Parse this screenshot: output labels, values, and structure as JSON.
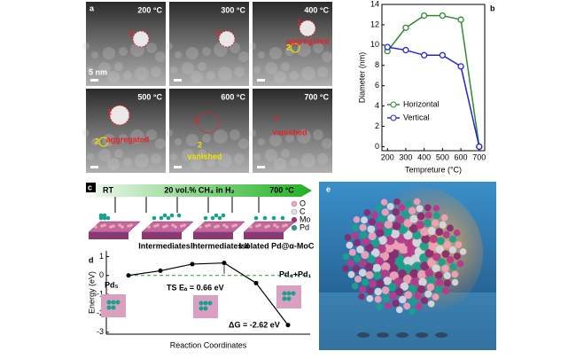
{
  "panel_a": {
    "label": "a",
    "scale_bar": "5 nm",
    "images": [
      {
        "temperature": "200 °C",
        "markers": [
          "1"
        ]
      },
      {
        "temperature": "300 °C",
        "markers": [
          "1"
        ]
      },
      {
        "temperature": "400 °C",
        "markers": [
          "1",
          "2"
        ],
        "note": "aggregated",
        "note_color": "#e8202a"
      },
      {
        "temperature": "500 °C",
        "markers": [
          "1",
          "2"
        ],
        "note": "aggregated",
        "note_color": "#e8202a"
      },
      {
        "temperature": "600 °C",
        "markers": [
          "1",
          "2"
        ],
        "note": "vanished",
        "note_color": "#f2e600"
      },
      {
        "temperature": "700 °C",
        "markers": [
          "1"
        ],
        "note": "vanished",
        "note_color": "#e8202a"
      }
    ]
  },
  "chart_data": [
    {
      "type": "line",
      "label": "b",
      "x_label": "Tempreture (°C)",
      "y_label": "Diameter (nm)",
      "x": [
        200,
        300,
        400,
        500,
        600,
        700
      ],
      "series": [
        {
          "name": "Horizontal",
          "color": "#2e8b2e",
          "values": [
            9.4,
            11.7,
            12.9,
            12.9,
            12.5,
            0
          ]
        },
        {
          "name": "Vertical",
          "color": "#2323d8",
          "values": [
            9.8,
            9.5,
            9.0,
            9.0,
            7.9,
            0
          ]
        }
      ],
      "xlim": [
        170,
        730
      ],
      "xticks": [
        200,
        300,
        400,
        500,
        600,
        700
      ],
      "ylim": [
        -0.4,
        14
      ],
      "yticks": [
        0,
        2,
        4,
        6,
        8,
        10,
        12,
        14
      ],
      "legend": "lower left"
    },
    {
      "type": "energy",
      "label": "d",
      "x_label": "Reaction Coordinates",
      "y_label": "Energy (eV)",
      "categories": [
        null,
        null,
        null,
        null,
        null,
        null
      ],
      "values": [
        0,
        0.25,
        0.6,
        0.66,
        -0.4,
        -2.62
      ],
      "color": "#000000",
      "ylim": [
        -3.1,
        1.3
      ],
      "yticks": [
        1,
        0,
        -1,
        -2,
        -3
      ],
      "annotations": [
        "Pd₅",
        "TS Eₐ = 0.66 eV",
        "Pd₄+Pd₁",
        "ΔG = -2.62 eV"
      ]
    }
  ],
  "panel_c": {
    "label": "c",
    "start": "RT",
    "condition": "20 vol.% CH₄ in H₂",
    "end": "700 °C",
    "stages": [
      "Intermediates I",
      "Intermediates II",
      "Isolated Pd@α-MoC"
    ],
    "legend": [
      {
        "name": "O",
        "color": "#f4a6b4"
      },
      {
        "name": "C",
        "color": "#e8e0e6"
      },
      {
        "name": "Mo",
        "color": "#a0307a"
      },
      {
        "name": "Pd",
        "color": "#1aa08e"
      }
    ]
  },
  "panel_e": {
    "label": "e"
  }
}
